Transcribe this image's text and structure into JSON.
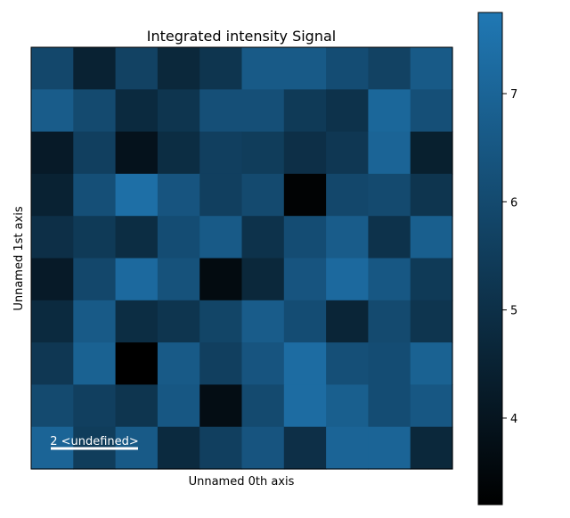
{
  "chart_data": {
    "type": "heatmap",
    "title": "Integrated intensity Signal",
    "xlabel": "Unnamed 0th axis",
    "ylabel": "Unnamed 1st axis",
    "rows": 10,
    "cols": 10,
    "values": [
      [
        5.9,
        4.5,
        5.7,
        4.7,
        5.2,
        6.6,
        6.6,
        6.1,
        5.7,
        6.6
      ],
      [
        6.7,
        6.0,
        4.8,
        5.2,
        6.2,
        6.2,
        5.4,
        5.1,
        7.1,
        6.2
      ],
      [
        4.2,
        5.6,
        3.9,
        4.9,
        5.6,
        5.5,
        5.0,
        5.3,
        7.0,
        4.4
      ],
      [
        4.5,
        6.2,
        7.4,
        6.4,
        5.6,
        6.0,
        3.3,
        5.9,
        6.0,
        5.2
      ],
      [
        5.0,
        5.4,
        4.9,
        6.1,
        6.6,
        5.1,
        6.1,
        6.7,
        5.1,
        6.8
      ],
      [
        4.2,
        5.9,
        7.2,
        6.3,
        3.6,
        4.7,
        6.4,
        7.2,
        6.5,
        5.4
      ],
      [
        4.8,
        6.6,
        4.9,
        5.2,
        5.8,
        6.7,
        6.1,
        4.6,
        6.0,
        5.2
      ],
      [
        5.3,
        6.9,
        3.2,
        6.6,
        5.6,
        6.4,
        7.3,
        6.2,
        6.1,
        6.9
      ],
      [
        6.0,
        5.6,
        5.2,
        6.5,
        3.7,
        6.0,
        7.3,
        6.8,
        6.1,
        6.5
      ],
      [
        7.0,
        5.5,
        6.6,
        4.8,
        5.6,
        6.4,
        5.0,
        7.0,
        7.0,
        4.7
      ]
    ],
    "vmin": 3.2,
    "vmax": 7.75,
    "colormap": {
      "low": "#000000",
      "high": "#2078b4"
    },
    "colorbar_ticks": [
      4,
      5,
      6,
      7
    ],
    "grid": false,
    "scalebar_label": "2 <undefined>"
  }
}
